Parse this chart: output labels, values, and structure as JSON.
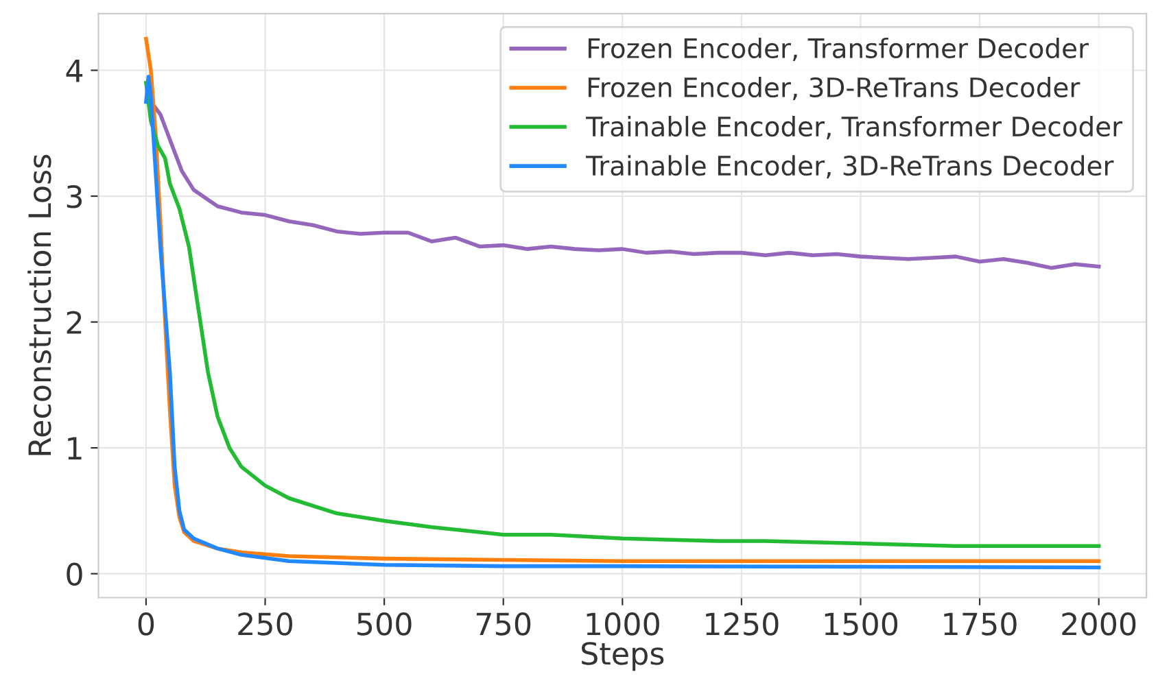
{
  "chart_data": {
    "type": "line",
    "xlabel": "Steps",
    "ylabel": "Reconstruction Loss",
    "xlim": [
      -100,
      2100
    ],
    "ylim": [
      -0.19,
      4.45
    ],
    "xticks": [
      0,
      250,
      500,
      750,
      1000,
      1250,
      1500,
      1750,
      2000
    ],
    "yticks": [
      0,
      1,
      2,
      3,
      4
    ],
    "grid": true,
    "legend": "top right",
    "line_style": "solid",
    "marker": "none",
    "series": [
      {
        "name": "Frozen Encoder, Transformer Decoder",
        "color": "#9467bd",
        "x": [
          10,
          30,
          50,
          75,
          100,
          150,
          200,
          250,
          300,
          350,
          400,
          450,
          500,
          550,
          600,
          650,
          700,
          750,
          800,
          850,
          900,
          950,
          1000,
          1050,
          1100,
          1150,
          1200,
          1250,
          1300,
          1350,
          1400,
          1450,
          1500,
          1550,
          1600,
          1650,
          1700,
          1750,
          1800,
          1850,
          1900,
          1950,
          2000
        ],
        "values": [
          3.75,
          3.65,
          3.45,
          3.2,
          3.05,
          2.92,
          2.87,
          2.85,
          2.8,
          2.77,
          2.72,
          2.7,
          2.71,
          2.71,
          2.64,
          2.67,
          2.6,
          2.61,
          2.58,
          2.6,
          2.58,
          2.57,
          2.58,
          2.55,
          2.56,
          2.54,
          2.55,
          2.55,
          2.53,
          2.55,
          2.53,
          2.54,
          2.52,
          2.51,
          2.5,
          2.51,
          2.52,
          2.48,
          2.5,
          2.47,
          2.43,
          2.46,
          2.44
        ]
      },
      {
        "name": "Frozen Encoder, 3D-ReTrans Decoder",
        "color": "#ff7f0e",
        "x": [
          0,
          10,
          20,
          30,
          40,
          50,
          60,
          70,
          80,
          100,
          150,
          200,
          300,
          500,
          750,
          1000,
          1500,
          2000
        ],
        "values": [
          4.25,
          4.0,
          3.5,
          2.8,
          2.0,
          1.3,
          0.7,
          0.45,
          0.33,
          0.26,
          0.2,
          0.17,
          0.14,
          0.12,
          0.11,
          0.1,
          0.1,
          0.1
        ]
      },
      {
        "name": "Trainable Encoder, Transformer Decoder",
        "color": "#22bb33",
        "x": [
          0,
          10,
          25,
          40,
          50,
          70,
          90,
          110,
          130,
          150,
          175,
          200,
          250,
          300,
          400,
          500,
          600,
          700,
          750,
          850,
          1000,
          1200,
          1300,
          1500,
          1700,
          1800,
          2000
        ],
        "values": [
          3.9,
          3.6,
          3.4,
          3.3,
          3.1,
          2.9,
          2.6,
          2.1,
          1.6,
          1.25,
          1.0,
          0.85,
          0.7,
          0.6,
          0.48,
          0.42,
          0.37,
          0.33,
          0.31,
          0.31,
          0.28,
          0.26,
          0.26,
          0.24,
          0.22,
          0.22,
          0.22
        ]
      },
      {
        "name": "Trainable Encoder, 3D-ReTrans Decoder",
        "color": "#2288ff",
        "x": [
          0,
          5,
          10,
          20,
          30,
          40,
          50,
          60,
          70,
          80,
          100,
          150,
          200,
          300,
          500,
          750,
          1000,
          2000
        ],
        "values": [
          3.75,
          3.95,
          3.8,
          3.2,
          2.6,
          2.1,
          1.6,
          0.85,
          0.5,
          0.35,
          0.28,
          0.2,
          0.15,
          0.1,
          0.07,
          0.06,
          0.06,
          0.05
        ]
      }
    ]
  }
}
